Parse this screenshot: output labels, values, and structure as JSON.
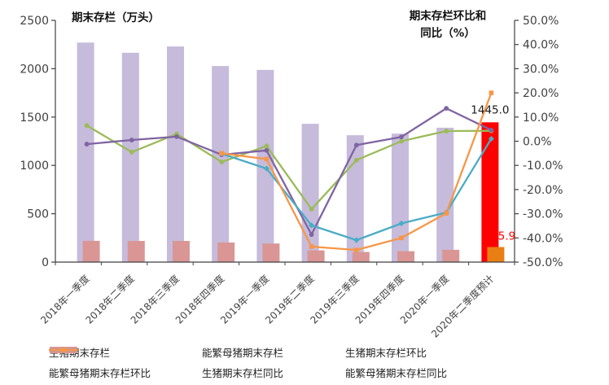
{
  "chart_data": {
    "type": "bar+line combo, dual axis",
    "categories": [
      "2018年一季度",
      "2018年二季度",
      "2018年三季度",
      "2018年四季度",
      "2019年一季度",
      "2019年二季度",
      "2019年三季度",
      "2019年四季度",
      "2020年一季度",
      "2020年二季度预计"
    ],
    "left_axis": {
      "title": "期末存栏（万头）",
      "min": 0,
      "max": 2500,
      "step": 500,
      "tick_labels": [
        "0",
        "500",
        "1000",
        "1500",
        "2000",
        "2500"
      ]
    },
    "right_axis": {
      "title": "期末存栏环比和同比（%）",
      "title_lines": [
        "期末存栏环比和",
        "同比（%）"
      ],
      "min": -50,
      "max": 50,
      "step": 10,
      "tick_labels_top_down": [
        "50.0%",
        "40.0%",
        "30.0%",
        "20.0%",
        "10.0%",
        "0.0%",
        "-10.0%",
        "-20.0%",
        "-30.0%",
        "-40.0%",
        "-50.0%"
      ]
    },
    "bar_series": [
      {
        "name": "生猪期末存栏",
        "axis": "left",
        "color": "#c6bbdb",
        "highlight_last_color": "#fe0000",
        "values": [
          2270,
          2165,
          2230,
          2028,
          1987,
          1430,
          1312,
          1328,
          1390,
          1445.0
        ]
      },
      {
        "name": "能繁母猪期末存栏",
        "axis": "left",
        "color": "#d99694",
        "highlight_last_color": "#e87f14",
        "values": [
          220,
          219,
          219,
          203,
          192,
          121,
          104,
          113,
          127,
          155.9
        ]
      }
    ],
    "line_series": [
      {
        "name": "生猪期末存栏环比",
        "axis": "right",
        "color": "#9bbb59",
        "marker": "circle",
        "values": [
          6.5,
          -4.5,
          3.0,
          -8.6,
          -2.0,
          -28.1,
          -7.8,
          0.0,
          4.2,
          4.3
        ]
      },
      {
        "name": "能繁母猪期末存栏环比",
        "axis": "right",
        "color": "#8064a2",
        "marker": "circle",
        "values": [
          -1.2,
          0.5,
          1.9,
          -5.6,
          -3.8,
          -38.6,
          -1.6,
          1.8,
          13.6,
          4.6
        ]
      },
      {
        "name": "生猪期末存栏同比",
        "axis": "right",
        "color": "#4bacc6",
        "marker": "diamond",
        "values": [
          null,
          null,
          null,
          -5.2,
          -11.3,
          -34.8,
          -40.9,
          -34.0,
          -29.5,
          1.0
        ]
      },
      {
        "name": "能繁母猪期末存栏同比",
        "axis": "right",
        "color": "#f79646",
        "marker": "square",
        "values": [
          null,
          null,
          null,
          -5.0,
          -7.4,
          -43.6,
          -45.0,
          -40.0,
          -29.8,
          20.0
        ]
      }
    ],
    "data_labels": [
      {
        "text": "1445.0",
        "color": "#1a1a1a",
        "attached_to": "生猪期末存栏 2020年二季度预计"
      },
      {
        "text": "155.9",
        "color": "#ff0000",
        "attached_to": "能繁母猪期末存栏 2020年二季度预计"
      }
    ],
    "legend": [
      {
        "name": "生猪期末存栏",
        "type": "bar",
        "color": "#c6bbdb"
      },
      {
        "name": "能繁母猪期末存栏",
        "type": "bar",
        "color": "#d99694"
      },
      {
        "name": "生猪期末存栏环比",
        "type": "line",
        "marker": "circle",
        "color": "#9bbb59"
      },
      {
        "name": "能繁母猪期末存栏环比",
        "type": "line",
        "marker": "circle",
        "color": "#8064a2"
      },
      {
        "name": "生猪期末存栏同比",
        "type": "line",
        "marker": "diamond",
        "color": "#4bacc6"
      },
      {
        "name": "能繁母猪期末存栏同比",
        "type": "line",
        "marker": "square",
        "color": "#f79646"
      }
    ]
  }
}
